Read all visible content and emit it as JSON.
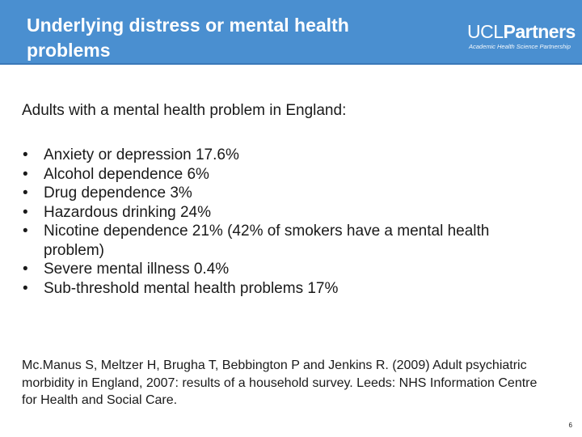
{
  "slide": {
    "title": "Underlying distress or mental health problems",
    "logo": {
      "brand_part1": "UCL",
      "brand_part2": "Partners",
      "tagline": "Academic Health Science Partnership"
    },
    "intro": "Adults with a mental health problem in England:",
    "bullets": [
      "Anxiety or depression 17.6%",
      "Alcohol dependence 6%",
      "Drug dependence 3%",
      "Hazardous drinking 24%",
      "Nicotine dependence 21% (42% of smokers have a mental health problem)",
      "Severe mental illness 0.4%",
      "Sub-threshold mental health problems 17%"
    ],
    "bullet_symbol": "•",
    "reference": "Mc.Manus S, Meltzer H, Brugha T, Bebbington P and Jenkins R. (2009) Adult psychiatric morbidity in England, 2007: results of a household survey. Leeds: NHS Information Centre for Health and Social Care.",
    "page_number": "6",
    "colors": {
      "header_background": "#4a8fd0",
      "header_text": "#ffffff",
      "body_text": "#1a1a1a"
    }
  }
}
